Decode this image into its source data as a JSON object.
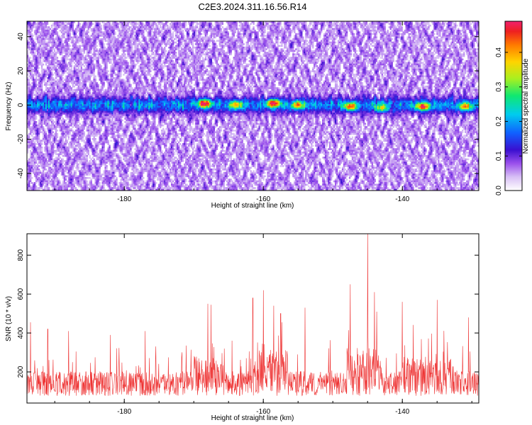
{
  "title": "C2E3.2024.311.16.56.R14",
  "colors": {
    "series": "#ee3333",
    "frame": "#000000",
    "colormap": [
      "#ffffff",
      "#c9a8f0",
      "#8a35e8",
      "#3a0fd0",
      "#1060ff",
      "#00ccee",
      "#10e870",
      "#a8f020",
      "#ffd400",
      "#ff7a00",
      "#ee2020",
      "#f0206e"
    ]
  },
  "chart_data": [
    {
      "type": "heatmap",
      "title": "C2E3.2024.311.16.56.R14",
      "xlabel": "Height of straight line (km)",
      "ylabel": "Frequency (Hz)",
      "xlim": [
        -194,
        -129
      ],
      "ylim": [
        -50,
        49
      ],
      "x_ticks": [
        -180,
        -160,
        -140
      ],
      "x_tick_labels": [
        "-180",
        "-160",
        "-140"
      ],
      "y_ticks": [
        -40,
        -20,
        0,
        20,
        40
      ],
      "y_tick_labels": [
        "-40",
        "-20",
        "0",
        "20",
        "40"
      ],
      "colorbar": {
        "label": "Normalized spectral amplitude",
        "range": [
          0,
          0.49
        ],
        "ticks": [
          0,
          0.1,
          0.2,
          0.3,
          0.4
        ],
        "tick_labels": [
          "0.0",
          "0.1",
          "0.2",
          "0.3",
          "0.4"
        ]
      },
      "peak_band_center_hz": 0,
      "peak_band_halfwidth_hz": 5,
      "hotspots": [
        {
          "x": -168.5,
          "y": 1,
          "v": 0.47
        },
        {
          "x": -164.0,
          "y": 0,
          "v": 0.33
        },
        {
          "x": -158.5,
          "y": 1,
          "v": 0.49
        },
        {
          "x": -155.0,
          "y": 0,
          "v": 0.36
        },
        {
          "x": -147.5,
          "y": -1,
          "v": 0.4
        },
        {
          "x": -143.0,
          "y": -2,
          "v": 0.3
        },
        {
          "x": -137.0,
          "y": -1,
          "v": 0.46
        },
        {
          "x": -131.0,
          "y": -1,
          "v": 0.36
        }
      ]
    },
    {
      "type": "line",
      "xlabel": "Height of straight line (km)",
      "ylabel": "SNR (10 * v/v)",
      "xlim": [
        -194,
        -129
      ],
      "ylim": [
        40,
        910
      ],
      "x_ticks": [
        -180,
        -160,
        -140
      ],
      "x_tick_labels": [
        "-180",
        "-160",
        "-140"
      ],
      "y_ticks": [
        200,
        400,
        600,
        800
      ],
      "y_tick_labels": [
        "200",
        "400",
        "600",
        "800"
      ],
      "baseline": 140,
      "spikes": [
        {
          "x": -193.5,
          "y": 455
        },
        {
          "x": -191.0,
          "y": 420
        },
        {
          "x": -188.0,
          "y": 410
        },
        {
          "x": -182.0,
          "y": 390
        },
        {
          "x": -177.0,
          "y": 410
        },
        {
          "x": -168.0,
          "y": 550
        },
        {
          "x": -167.5,
          "y": 545
        },
        {
          "x": -161.5,
          "y": 580
        },
        {
          "x": -160.0,
          "y": 620
        },
        {
          "x": -158.5,
          "y": 540
        },
        {
          "x": -157.5,
          "y": 500
        },
        {
          "x": -154.0,
          "y": 530
        },
        {
          "x": -147.5,
          "y": 650
        },
        {
          "x": -145.0,
          "y": 910
        },
        {
          "x": -144.0,
          "y": 610
        },
        {
          "x": -140.0,
          "y": 560
        },
        {
          "x": -135.0,
          "y": 570
        },
        {
          "x": -130.5,
          "y": 480
        }
      ],
      "active_ranges": [
        {
          "from": -170.0,
          "to": -166.0,
          "lift": 80
        },
        {
          "from": -162.0,
          "to": -156.5,
          "lift": 110
        },
        {
          "from": -148.0,
          "to": -143.0,
          "lift": 120
        },
        {
          "from": -140.0,
          "to": -133.0,
          "lift": 70
        }
      ]
    }
  ]
}
